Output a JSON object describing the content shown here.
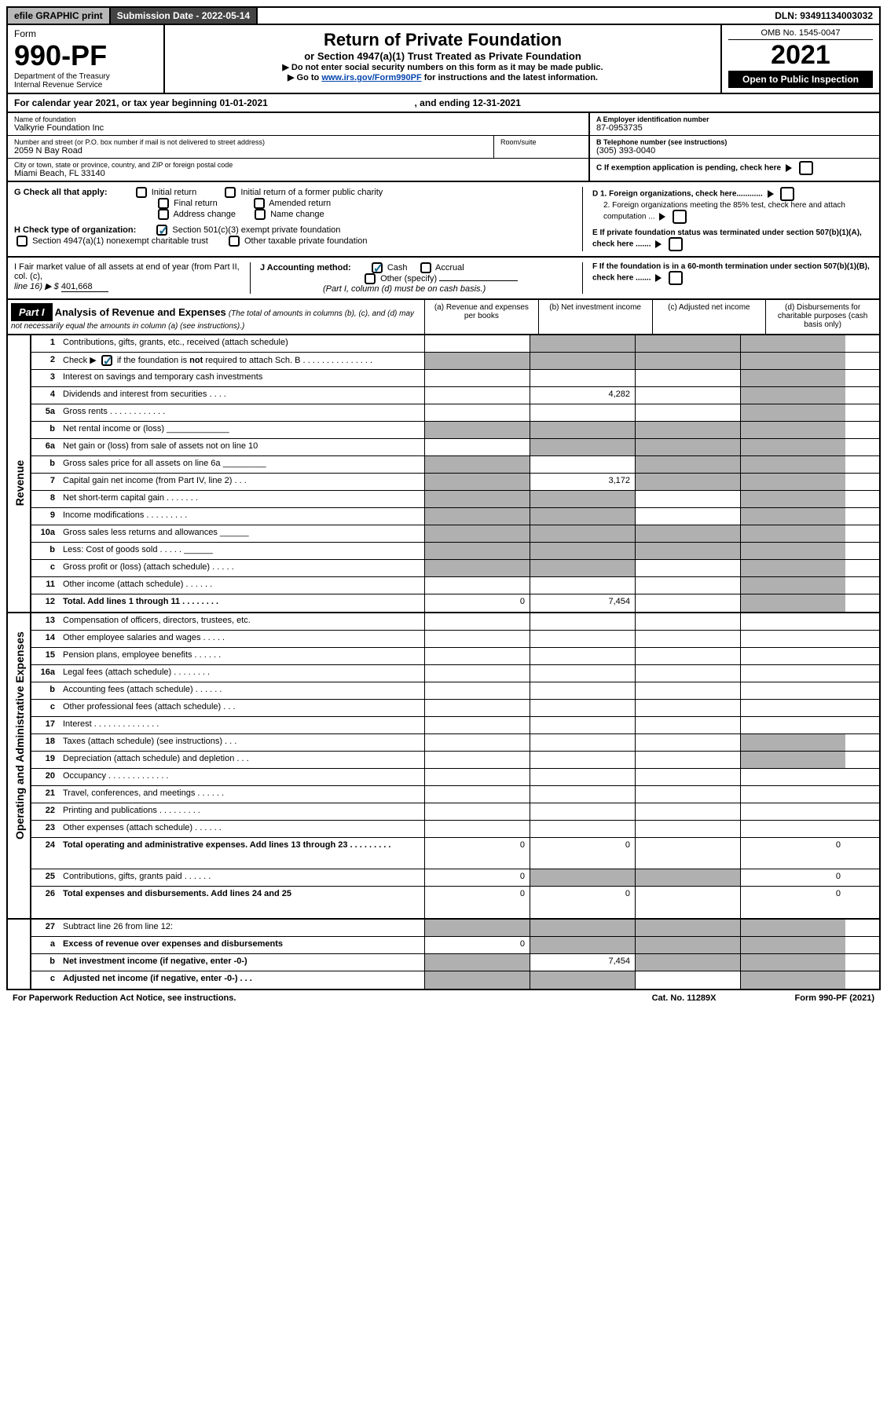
{
  "topbar": {
    "efile": "efile GRAPHIC print",
    "sub_label": "Submission Date - 2022-05-14",
    "dln_label": "DLN: 93491134003032"
  },
  "header": {
    "form_word": "Form",
    "form_no": "990-PF",
    "dept": "Department of the Treasury",
    "irs": "Internal Revenue Service",
    "title": "Return of Private Foundation",
    "subtitle": "or Section 4947(a)(1) Trust Treated as Private Foundation",
    "instr1": "▶ Do not enter social security numbers on this form as it may be made public.",
    "instr2_pre": "▶ Go to ",
    "instr2_link": "www.irs.gov/Form990PF",
    "instr2_post": " for instructions and the latest information.",
    "omb": "OMB No. 1545-0047",
    "year": "2021",
    "opi": "Open to Public Inspection"
  },
  "cal": {
    "text1": "For calendar year 2021, or tax year beginning 01-01-2021",
    "text2": ", and ending 12-31-2021"
  },
  "info": {
    "name_lbl": "Name of foundation",
    "name_val": "Valkyrie Foundation Inc",
    "addr_lbl": "Number and street (or P.O. box number if mail is not delivered to street address)",
    "addr_val": "2059 N Bay Road",
    "room_lbl": "Room/suite",
    "city_lbl": "City or town, state or province, country, and ZIP or foreign postal code",
    "city_val": "Miami Beach, FL  33140",
    "ein_lbl": "A Employer identification number",
    "ein_val": "87-0953735",
    "tel_lbl": "B Telephone number (see instructions)",
    "tel_val": "(305) 393-0040",
    "c_lbl": "C If exemption application is pending, check here"
  },
  "g": {
    "lbl": "G Check all that apply:",
    "initial": "Initial return",
    "initial_former": "Initial return of a former public charity",
    "final": "Final return",
    "amended": "Amended return",
    "addr": "Address change",
    "name": "Name change"
  },
  "h": {
    "lbl": "H Check type of organization:",
    "s501": "Section 501(c)(3) exempt private foundation",
    "s4947": "Section 4947(a)(1) nonexempt charitable trust",
    "other": "Other taxable private foundation"
  },
  "d": {
    "d1": "D 1. Foreign organizations, check here............",
    "d2": "2. Foreign organizations meeting the 85% test, check here and attach computation ...",
    "e": "E  If private foundation status was terminated under section 507(b)(1)(A), check here .......",
    "f": "F  If the foundation is in a 60-month termination under section 507(b)(1)(B), check here ......."
  },
  "i": {
    "lbl1": "I Fair market value of all assets at end of year (from Part II, col. (c),",
    "lbl2": "line 16) ▶ $ ",
    "val": "401,668"
  },
  "j": {
    "lbl": "J Accounting method:",
    "cash": "Cash",
    "accrual": "Accrual",
    "other": "Other (specify)",
    "note": "(Part I, column (d) must be on cash basis.)"
  },
  "part1": {
    "hdr": "Part I",
    "title": "Analysis of Revenue and Expenses",
    "sub": " (The total of amounts in columns (b), (c), and (d) may not necessarily equal the amounts in column (a) (see instructions).)",
    "col_a": "(a)   Revenue and expenses per books",
    "col_b": "(b)   Net investment income",
    "col_c": "(c)   Adjusted net income",
    "col_d": "(d)   Disbursements for charitable purposes (cash basis only)"
  },
  "side_labels": {
    "rev": "Revenue",
    "exp": "Operating and Administrative Expenses"
  },
  "rows": [
    {
      "n": "1",
      "d": "Contributions, gifts, grants, etc., received (attach schedule)",
      "a": "",
      "b": "s",
      "c": "s",
      "dd": "s"
    },
    {
      "n": "2",
      "d": "Check ▶ [✓] if the foundation is not required to attach Sch. B   .   .   .   .   .   .   .   .   .   .   .   .   .   .   .",
      "a": "s",
      "b": "s",
      "c": "s",
      "dd": "s",
      "chk": true
    },
    {
      "n": "3",
      "d": "Interest on savings and temporary cash investments",
      "a": "",
      "b": "",
      "c": "",
      "dd": "s"
    },
    {
      "n": "4",
      "d": "Dividends and interest from securities   .   .   .   .",
      "a": "",
      "b": "4,282",
      "c": "",
      "dd": "s"
    },
    {
      "n": "5a",
      "d": "Gross rents   .   .   .   .   .   .   .   .   .   .   .   .",
      "a": "",
      "b": "",
      "c": "",
      "dd": "s"
    },
    {
      "n": "b",
      "d": "Net rental income or (loss)   _____________",
      "a": "s",
      "b": "s",
      "c": "s",
      "dd": "s"
    },
    {
      "n": "6a",
      "d": "Net gain or (loss) from sale of assets not on line 10",
      "a": "",
      "b": "s",
      "c": "s",
      "dd": "s"
    },
    {
      "n": "b",
      "d": "Gross sales price for all assets on line 6a _________",
      "a": "s",
      "b": "",
      "c": "s",
      "dd": "s"
    },
    {
      "n": "7",
      "d": "Capital gain net income (from Part IV, line 2)   .   .   .",
      "a": "s",
      "b": "3,172",
      "c": "s",
      "dd": "s"
    },
    {
      "n": "8",
      "d": "Net short-term capital gain   .   .   .   .   .   .   .",
      "a": "s",
      "b": "s",
      "c": "",
      "dd": "s"
    },
    {
      "n": "9",
      "d": "Income modifications   .   .   .   .   .   .   .   .   .",
      "a": "s",
      "b": "s",
      "c": "",
      "dd": "s"
    },
    {
      "n": "10a",
      "d": "Gross sales less returns and allowances   ______",
      "a": "s",
      "b": "s",
      "c": "s",
      "dd": "s"
    },
    {
      "n": "b",
      "d": "Less: Cost of goods sold   .   .   .   .   .   ______",
      "a": "s",
      "b": "s",
      "c": "s",
      "dd": "s"
    },
    {
      "n": "c",
      "d": "Gross profit or (loss) (attach schedule)   .   .   .   .   .",
      "a": "s",
      "b": "s",
      "c": "",
      "dd": "s"
    },
    {
      "n": "11",
      "d": "Other income (attach schedule)   .   .   .   .   .   .",
      "a": "",
      "b": "",
      "c": "",
      "dd": "s"
    },
    {
      "n": "12",
      "d": "Total. Add lines 1 through 11   .   .   .   .   .   .   .   .",
      "a": "0",
      "b": "7,454",
      "c": "",
      "dd": "s",
      "bold": true
    }
  ],
  "rows2": [
    {
      "n": "13",
      "d": "Compensation of officers, directors, trustees, etc.",
      "a": "",
      "b": "",
      "c": "",
      "dd": ""
    },
    {
      "n": "14",
      "d": "Other employee salaries and wages   .   .   .   .   .",
      "a": "",
      "b": "",
      "c": "",
      "dd": ""
    },
    {
      "n": "15",
      "d": "Pension plans, employee benefits   .   .   .   .   .   .",
      "a": "",
      "b": "",
      "c": "",
      "dd": ""
    },
    {
      "n": "16a",
      "d": "Legal fees (attach schedule)   .   .   .   .   .   .   .   .",
      "a": "",
      "b": "",
      "c": "",
      "dd": ""
    },
    {
      "n": "b",
      "d": "Accounting fees (attach schedule)   .   .   .   .   .   .",
      "a": "",
      "b": "",
      "c": "",
      "dd": ""
    },
    {
      "n": "c",
      "d": "Other professional fees (attach schedule)   .   .   .",
      "a": "",
      "b": "",
      "c": "",
      "dd": ""
    },
    {
      "n": "17",
      "d": "Interest   .   .   .   .   .   .   .   .   .   .   .   .   .   .",
      "a": "",
      "b": "",
      "c": "",
      "dd": ""
    },
    {
      "n": "18",
      "d": "Taxes (attach schedule) (see instructions)   .   .   .",
      "a": "",
      "b": "",
      "c": "",
      "dd": "s"
    },
    {
      "n": "19",
      "d": "Depreciation (attach schedule) and depletion   .   .   .",
      "a": "",
      "b": "",
      "c": "",
      "dd": "s"
    },
    {
      "n": "20",
      "d": "Occupancy   .   .   .   .   .   .   .   .   .   .   .   .   .",
      "a": "",
      "b": "",
      "c": "",
      "dd": ""
    },
    {
      "n": "21",
      "d": "Travel, conferences, and meetings   .   .   .   .   .   .",
      "a": "",
      "b": "",
      "c": "",
      "dd": ""
    },
    {
      "n": "22",
      "d": "Printing and publications   .   .   .   .   .   .   .   .   .",
      "a": "",
      "b": "",
      "c": "",
      "dd": ""
    },
    {
      "n": "23",
      "d": "Other expenses (attach schedule)   .   .   .   .   .   .",
      "a": "",
      "b": "",
      "c": "",
      "dd": ""
    },
    {
      "n": "24",
      "d": "Total operating and administrative expenses. Add lines 13 through 23   .   .   .   .   .   .   .   .   .",
      "a": "0",
      "b": "0",
      "c": "",
      "dd": "0",
      "bold": true,
      "tall": true
    },
    {
      "n": "25",
      "d": "Contributions, gifts, grants paid   .   .   .   .   .   .",
      "a": "0",
      "b": "s",
      "c": "s",
      "dd": "0"
    },
    {
      "n": "26",
      "d": "Total expenses and disbursements. Add lines 24 and 25",
      "a": "0",
      "b": "0",
      "c": "",
      "dd": "0",
      "bold": true,
      "tall": true
    }
  ],
  "rows3": [
    {
      "n": "27",
      "d": "Subtract line 26 from line 12:",
      "a": "s",
      "b": "s",
      "c": "s",
      "dd": "s"
    },
    {
      "n": "a",
      "d": "Excess of revenue over expenses and disbursements",
      "a": "0",
      "b": "s",
      "c": "s",
      "dd": "s",
      "bold": true
    },
    {
      "n": "b",
      "d": "Net investment income (if negative, enter -0-)",
      "a": "s",
      "b": "7,454",
      "c": "s",
      "dd": "s",
      "bold": true
    },
    {
      "n": "c",
      "d": "Adjusted net income (if negative, enter -0-)   .   .   .",
      "a": "s",
      "b": "s",
      "c": "",
      "dd": "s",
      "bold": true
    }
  ],
  "footer": {
    "left": "For Paperwork Reduction Act Notice, see instructions.",
    "mid": "Cat. No. 11289X",
    "right": "Form 990-PF (2021)"
  }
}
